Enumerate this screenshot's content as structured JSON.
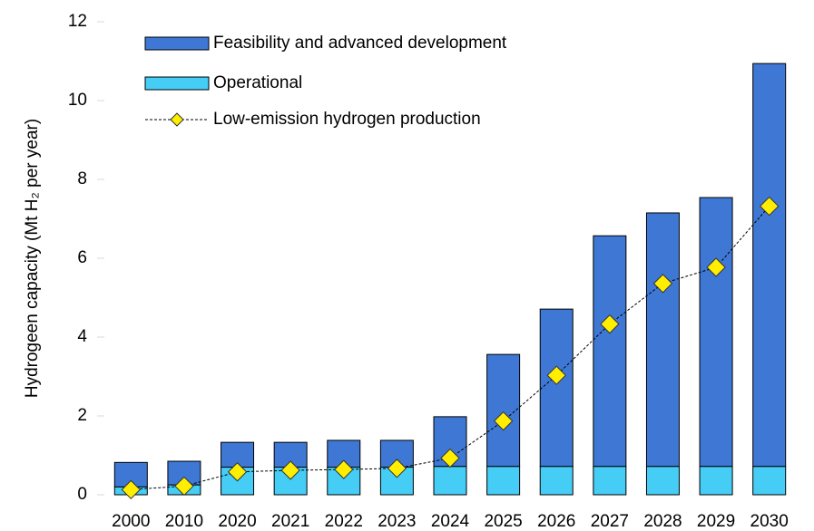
{
  "chart_data": {
    "type": "stacked_bar_line",
    "y_axis_label": "Hydrogeen capacity (Mt H₂ per year)",
    "categories": [
      "2000",
      "2010",
      "2020",
      "2021",
      "2022",
      "2023",
      "2024",
      "2025",
      "2026",
      "2027",
      "2028",
      "2029",
      "2030"
    ],
    "series": [
      {
        "name": "Operational",
        "color": "#45cdf5",
        "kind": "bar",
        "values": [
          0.2,
          0.25,
          0.7,
          0.7,
          0.7,
          0.7,
          0.72,
          0.72,
          0.72,
          0.72,
          0.72,
          0.72,
          0.72
        ]
      },
      {
        "name": "Feasibility and advanced development",
        "color": "#3e78d4",
        "kind": "bar",
        "values": [
          0.62,
          0.6,
          0.63,
          0.63,
          0.68,
          0.68,
          1.26,
          2.84,
          3.99,
          5.85,
          6.43,
          6.82,
          10.22
        ]
      },
      {
        "name": "Low-emission hydrogen production",
        "color": "#ffee00",
        "kind": "line",
        "values": [
          0.13,
          0.22,
          0.58,
          0.62,
          0.64,
          0.67,
          0.93,
          1.87,
          3.03,
          4.33,
          5.36,
          5.77,
          7.32
        ]
      }
    ],
    "ylim": [
      0,
      12
    ],
    "yticks": [
      0,
      2,
      4,
      6,
      8,
      10,
      12
    ],
    "grid": false
  }
}
